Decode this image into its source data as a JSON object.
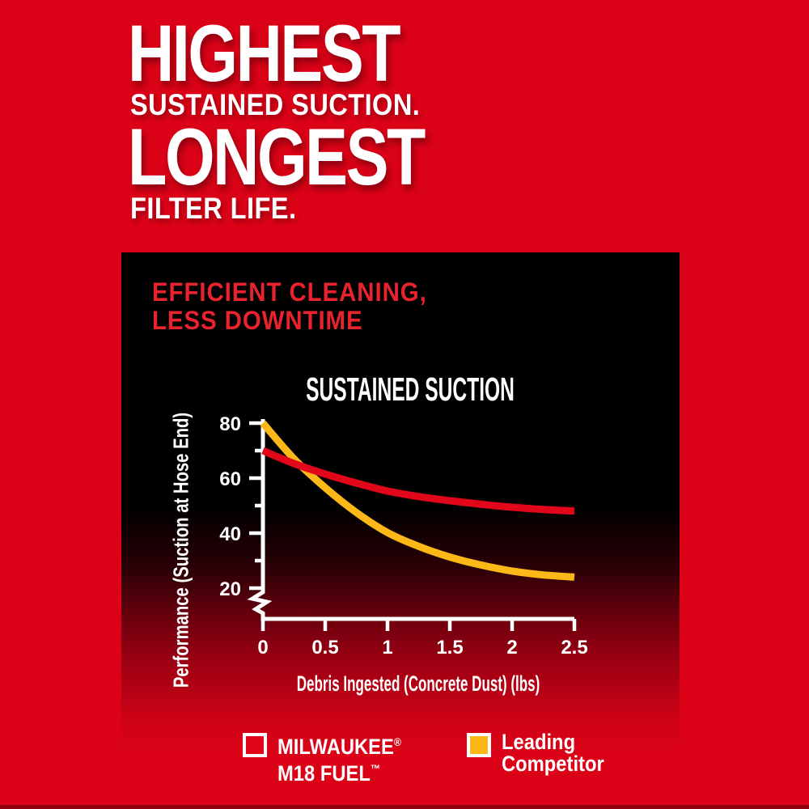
{
  "page": {
    "headline": {
      "line1": "HIGHEST",
      "line2": "SUSTAINED SUCTION.",
      "line3": "LONGEST",
      "line4": "FILTER LIFE."
    },
    "panel": {
      "heading_line1": "EFFICIENT CLEANING,",
      "heading_line2": "LESS DOWNTIME"
    }
  },
  "colors": {
    "background_red": "#db0217",
    "heading_red": "#e8232e",
    "milwaukee_red": "#e2061b",
    "competitor_yellow": "#fcb817",
    "axis_white": "#ffffff",
    "panel_black": "#000000"
  },
  "legend": {
    "items": [
      {
        "label_line1": "MILWAUKEE",
        "label_line1_mark": "®",
        "label_line2": "M18 FUEL",
        "label_line2_mark": "™"
      },
      {
        "label_line1": "Leading",
        "label_line2": "Competitor"
      }
    ]
  },
  "chart_data": {
    "type": "line",
    "title": "SUSTAINED SUCTION",
    "xlabel": "Debris Ingested (Concrete Dust) (lbs)",
    "ylabel": "Performance (Suction at Hose End)",
    "x_ticks": [
      0,
      0.5,
      1,
      1.5,
      2,
      2.5
    ],
    "x_tick_labels": [
      "0",
      "0.5",
      "1",
      "1.5",
      "2",
      "2.5"
    ],
    "y_ticks": [
      80,
      60,
      40,
      20
    ],
    "y_tick_labels": [
      "80",
      "60",
      "40",
      "20"
    ],
    "y_minor_ticks": [
      70,
      50,
      30
    ],
    "ylim_displayed": [
      20,
      80
    ],
    "xlim": [
      0,
      2.5
    ],
    "axis_break_on_y": true,
    "grid": false,
    "legend_position": "bottom",
    "x": [
      0,
      0.25,
      0.5,
      0.75,
      1,
      1.25,
      1.5,
      1.75,
      2,
      2.25,
      2.5
    ],
    "series": [
      {
        "name": "MILWAUKEE® M18 FUEL™",
        "color": "#e2061b",
        "values": [
          70,
          65.3,
          61.5,
          58.2,
          55.3,
          53.3,
          51.8,
          50.5,
          49.4,
          48.6,
          48
        ]
      },
      {
        "name": "Leading Competitor",
        "color": "#fcb817",
        "values": [
          80,
          67,
          56.5,
          47.5,
          40.2,
          35.2,
          31.3,
          28.4,
          26.2,
          24.8,
          24
        ]
      }
    ]
  }
}
